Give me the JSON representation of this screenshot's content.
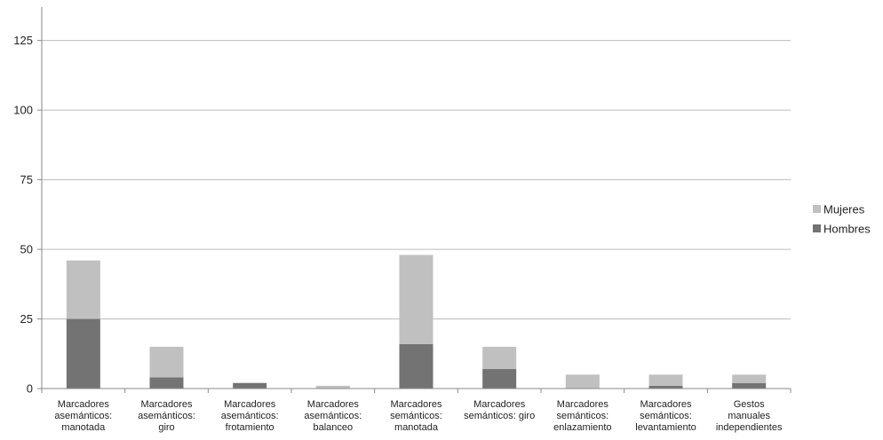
{
  "chart_data": {
    "type": "bar",
    "stacked": true,
    "categories": [
      [
        "Marcadores",
        "asemánticos:",
        "manotada"
      ],
      [
        "Marcadores",
        "asemánticos:",
        "giro"
      ],
      [
        "Marcadores",
        "asemánticos:",
        "frotamiento"
      ],
      [
        "Marcadores",
        "asemánticos:",
        "balanceo"
      ],
      [
        "Marcadores",
        "semánticos:",
        "manotada"
      ],
      [
        "Marcadores",
        "semánticos: giro"
      ],
      [
        "Marcadores",
        "semánticos:",
        "enlazamiento"
      ],
      [
        "Marcadores",
        "semánticos:",
        "levantamiento"
      ],
      [
        "Gestos",
        "manuales",
        "independientes"
      ]
    ],
    "series": [
      {
        "name": "Hombres",
        "color": "#737373",
        "values": [
          25,
          4,
          2,
          0,
          16,
          7,
          0,
          1,
          2
        ]
      },
      {
        "name": "Mujeres",
        "color": "#c0c0c0",
        "values": [
          21,
          11,
          0,
          1,
          32,
          8,
          5,
          4,
          3
        ]
      }
    ],
    "ylim": [
      0,
      137
    ],
    "yticks": [
      0,
      25,
      50,
      75,
      100,
      125
    ],
    "ytick_labels": [
      "0",
      "25",
      "50",
      "75",
      "100",
      "125"
    ],
    "grid": true,
    "legend_position": "right",
    "legend_order": [
      "Mujeres",
      "Hombres"
    ],
    "gridline_color": "#bdbdbd",
    "axis_color": "#8a8a8a"
  }
}
